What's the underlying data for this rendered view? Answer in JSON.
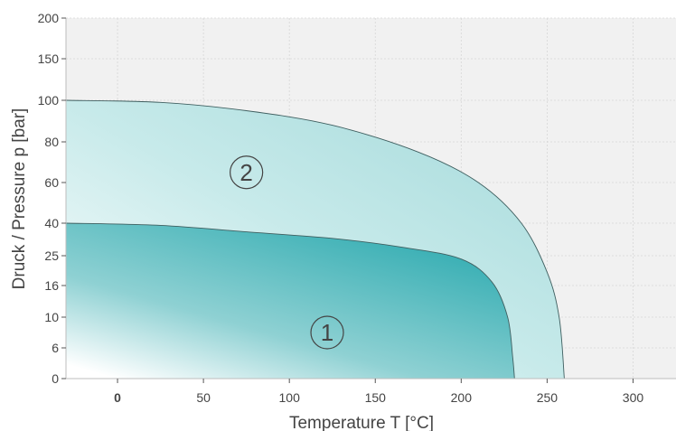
{
  "chart_data": {
    "type": "area",
    "xlabel": "Temperature T   [°C]",
    "ylabel": "Druck / Pressure p   [bar]",
    "xlim": [
      -30,
      325
    ],
    "x_ticks": [
      0,
      50,
      100,
      150,
      200,
      250,
      300
    ],
    "x_tick_labels": [
      "0",
      "50",
      "100",
      "150",
      "200",
      "250",
      "300"
    ],
    "y_ticks": [
      0,
      6,
      10,
      16,
      25,
      40,
      60,
      80,
      100,
      150,
      200
    ],
    "y_tick_labels": [
      "0",
      "6",
      "10",
      "16",
      "25",
      "40",
      "60",
      "80",
      "100",
      "150",
      "200"
    ],
    "y_scale": "non-linear (custom tick spacing)",
    "grid": true,
    "series": [
      {
        "marker": "2",
        "color": "#a9dcdc",
        "points": [
          [
            -30,
            100
          ],
          [
            25,
            99
          ],
          [
            75,
            95
          ],
          [
            125,
            88
          ],
          [
            175,
            75
          ],
          [
            210,
            60
          ],
          [
            235,
            40
          ],
          [
            250,
            20
          ],
          [
            257,
            10
          ],
          [
            260,
            0
          ]
        ]
      },
      {
        "marker": "1",
        "color": "#3fb3b7",
        "points": [
          [
            -30,
            40
          ],
          [
            25,
            39
          ],
          [
            75,
            36
          ],
          [
            125,
            33
          ],
          [
            165,
            29
          ],
          [
            200,
            24
          ],
          [
            218,
            17
          ],
          [
            227,
            10
          ],
          [
            230,
            4
          ],
          [
            231,
            0
          ]
        ]
      }
    ],
    "markers": [
      {
        "label": "2",
        "x": 75,
        "y": 65
      },
      {
        "label": "1",
        "x": 122,
        "y": 8
      }
    ]
  }
}
